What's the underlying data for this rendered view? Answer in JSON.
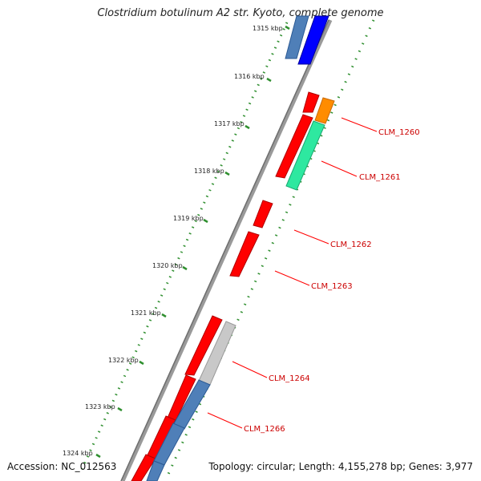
{
  "title": "Clostridium botulinum A2 str. Kyoto, complete genome",
  "accession": "Accession: NC_012563",
  "topology": "Topology: circular; Length: 4,155,278 bp; Genes: 3,977",
  "ticks": [
    "1315 kbp",
    "1316 kbp",
    "1317 kbp",
    "1318 kbp",
    "1319 kbp",
    "1320 kbp",
    "1321 kbp",
    "1322 kbp",
    "1323 kbp",
    "1324 kbp"
  ],
  "gene_labels": [
    "CLM_1260",
    "CLM_1261",
    "CLM_1262",
    "CLM_1263",
    "CLM_1264",
    "CLM_1266"
  ],
  "colors": {
    "forward_gene": "#ff0000",
    "label_red": "#cc0000",
    "blue_cds": "#0000ff",
    "steelblue_cds": "#4f7fb8",
    "orange_cds": "#ff8c00",
    "green_cds": "#2ee8a0",
    "gray_cds": "#c8c8c8",
    "tick_dots": "#2f8f2f",
    "backbone": "#888888"
  }
}
